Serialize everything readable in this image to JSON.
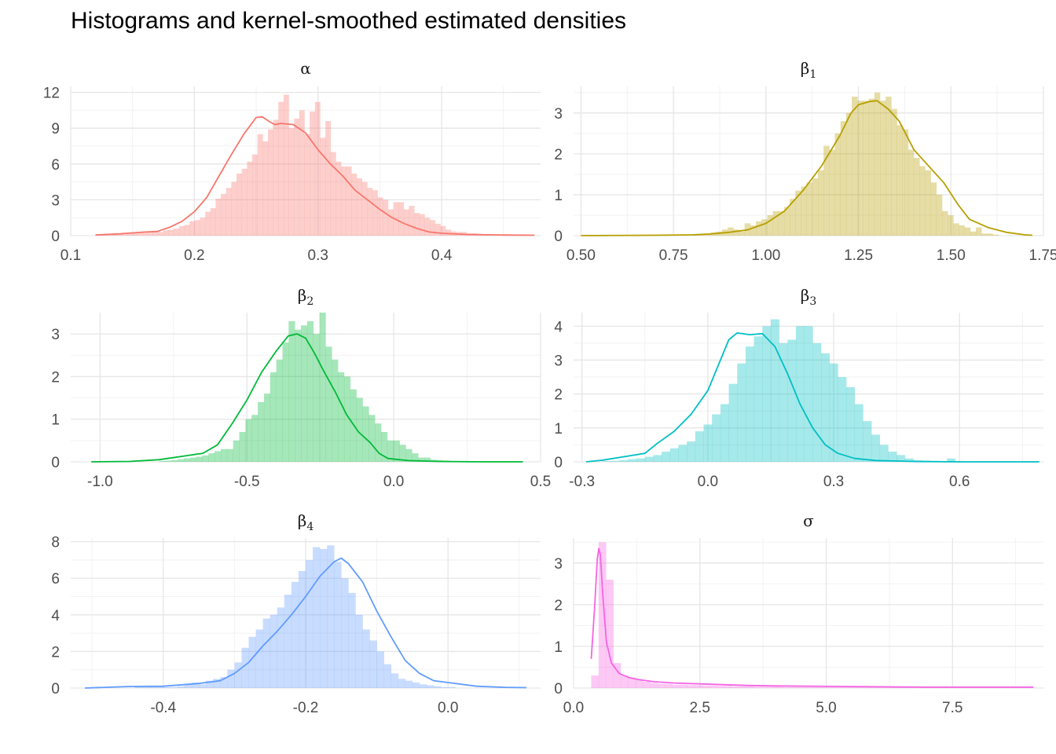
{
  "title": "Histograms and kernel-smoothed estimated densities",
  "chart_data": [
    {
      "type": "histogram+density",
      "strip": "α",
      "strip_sub": "",
      "color": "#F8766D",
      "xlim": [
        0.1,
        0.48
      ],
      "ylim": [
        0,
        12.5
      ],
      "xticks": [
        0.1,
        0.2,
        0.3,
        0.4
      ],
      "xtick_labels": [
        "0.1",
        "0.2",
        "0.3",
        "0.4"
      ],
      "yticks": [
        0,
        3,
        6,
        9,
        12
      ],
      "ytick_labels": [
        "0",
        "3",
        "6",
        "9",
        "12"
      ],
      "range": [
        0.12,
        0.475
      ],
      "density": [
        [
          0.12,
          0.05
        ],
        [
          0.14,
          0.15
        ],
        [
          0.16,
          0.3
        ],
        [
          0.17,
          0.35
        ],
        [
          0.18,
          0.7
        ],
        [
          0.19,
          1.2
        ],
        [
          0.2,
          2.0
        ],
        [
          0.21,
          3.2
        ],
        [
          0.22,
          5.0
        ],
        [
          0.23,
          6.8
        ],
        [
          0.24,
          8.5
        ],
        [
          0.25,
          9.9
        ],
        [
          0.255,
          9.95
        ],
        [
          0.26,
          9.6
        ],
        [
          0.265,
          9.3
        ],
        [
          0.27,
          9.4
        ],
        [
          0.28,
          9.3
        ],
        [
          0.29,
          8.6
        ],
        [
          0.3,
          7.2
        ],
        [
          0.31,
          6.0
        ],
        [
          0.32,
          5.0
        ],
        [
          0.33,
          3.8
        ],
        [
          0.34,
          3.0
        ],
        [
          0.35,
          2.2
        ],
        [
          0.36,
          1.5
        ],
        [
          0.37,
          1.0
        ],
        [
          0.38,
          0.6
        ],
        [
          0.39,
          0.3
        ],
        [
          0.4,
          0.2
        ],
        [
          0.42,
          0.1
        ],
        [
          0.45,
          0.05
        ],
        [
          0.475,
          0.03
        ]
      ],
      "hist": [
        0.05,
        0.05,
        0.05,
        0.1,
        0.1,
        0.1,
        0.15,
        0.2,
        0.3,
        0.3,
        0.3,
        0.3,
        0.3,
        0.45,
        0.5,
        0.6,
        0.8,
        0.9,
        1.2,
        1.3,
        1.5,
        2.0,
        2.3,
        3.1,
        3.5,
        4.0,
        4.5,
        5.2,
        5.6,
        6.2,
        6.8,
        8.5,
        7.9,
        8.9,
        9.7,
        11.2,
        11.8,
        9.0,
        9.8,
        10.5,
        8.5,
        10.4,
        11.2,
        8.2,
        9.6,
        7.0,
        6.2,
        5.8,
        5.8,
        5.2,
        4.8,
        4.5,
        4.0,
        3.8,
        3.2,
        3.0,
        2.2,
        2.8,
        2.8,
        2.2,
        2.5,
        1.9,
        1.8,
        1.5,
        1.3,
        1.0,
        0.8,
        0.5,
        0.35,
        0.3,
        0.3,
        0.2,
        0.2,
        0.15,
        0.1,
        0.1,
        0.1,
        0.05,
        0.05,
        0.05,
        0.05,
        0.05,
        0.05,
        0.05
      ]
    },
    {
      "type": "histogram+density",
      "strip": "β",
      "strip_sub": "1",
      "color": "#B79F00",
      "xlim": [
        0.48,
        1.75
      ],
      "ylim": [
        0,
        3.65
      ],
      "xticks": [
        0.5,
        0.75,
        1.0,
        1.25,
        1.5,
        1.75
      ],
      "xtick_labels": [
        "0.50",
        "0.75",
        "1.00",
        "1.25",
        "1.50",
        "1.75"
      ],
      "yticks": [
        0,
        1,
        2,
        3
      ],
      "ytick_labels": [
        "0",
        "1",
        "2",
        "3"
      ],
      "range": [
        0.5,
        1.72
      ],
      "density": [
        [
          0.5,
          0.0
        ],
        [
          0.7,
          0.01
        ],
        [
          0.8,
          0.02
        ],
        [
          0.85,
          0.04
        ],
        [
          0.9,
          0.08
        ],
        [
          0.95,
          0.14
        ],
        [
          1.0,
          0.3
        ],
        [
          1.05,
          0.6
        ],
        [
          1.1,
          1.1
        ],
        [
          1.15,
          1.7
        ],
        [
          1.2,
          2.45
        ],
        [
          1.23,
          3.0
        ],
        [
          1.25,
          3.2
        ],
        [
          1.28,
          3.28
        ],
        [
          1.3,
          3.3
        ],
        [
          1.33,
          3.1
        ],
        [
          1.36,
          2.8
        ],
        [
          1.4,
          2.1
        ],
        [
          1.45,
          1.6
        ],
        [
          1.48,
          1.3
        ],
        [
          1.52,
          0.75
        ],
        [
          1.55,
          0.4
        ],
        [
          1.6,
          0.2
        ],
        [
          1.65,
          0.08
        ],
        [
          1.7,
          0.02
        ],
        [
          1.72,
          0.01
        ]
      ],
      "hist": [
        0,
        0,
        0,
        0,
        0,
        0,
        0,
        0,
        0,
        0,
        0,
        0,
        0,
        0,
        0,
        0,
        0,
        0,
        0,
        0,
        0.03,
        0.05,
        0.05,
        0.08,
        0.1,
        0.15,
        0.2,
        0.15,
        0.1,
        0.3,
        0.25,
        0.35,
        0.4,
        0.5,
        0.6,
        0.6,
        0.7,
        0.9,
        1.1,
        1.2,
        1.3,
        1.4,
        1.6,
        2.2,
        2.1,
        2.5,
        2.8,
        3.0,
        3.4,
        3.3,
        3.3,
        3.35,
        3.5,
        3.3,
        3.4,
        3.1,
        2.7,
        2.6,
        2.1,
        1.9,
        1.7,
        1.6,
        1.3,
        1.0,
        0.6,
        0.5,
        0.3,
        0.25,
        0.2,
        0.1,
        0.2,
        0.05,
        0.05,
        0.02,
        0,
        0,
        0,
        0,
        0,
        0
      ]
    },
    {
      "type": "histogram+density",
      "strip": "β",
      "strip_sub": "2",
      "color": "#00BA38",
      "xlim": [
        -1.1,
        0.5
      ],
      "ylim": [
        0,
        3.5
      ],
      "xticks": [
        -1.0,
        -0.5,
        0.0,
        0.5
      ],
      "xtick_labels": [
        "-1.0",
        "-0.5",
        "0.0",
        "0.5"
      ],
      "yticks": [
        0,
        1,
        2,
        3
      ],
      "ytick_labels": [
        "0",
        "1",
        "2",
        "3"
      ],
      "range": [
        -1.03,
        0.44
      ],
      "density": [
        [
          -1.03,
          0.0
        ],
        [
          -0.9,
          0.01
        ],
        [
          -0.8,
          0.05
        ],
        [
          -0.7,
          0.15
        ],
        [
          -0.65,
          0.2
        ],
        [
          -0.6,
          0.4
        ],
        [
          -0.55,
          0.9
        ],
        [
          -0.5,
          1.45
        ],
        [
          -0.45,
          2.1
        ],
        [
          -0.4,
          2.6
        ],
        [
          -0.36,
          2.95
        ],
        [
          -0.33,
          3.0
        ],
        [
          -0.3,
          2.9
        ],
        [
          -0.27,
          2.55
        ],
        [
          -0.24,
          2.15
        ],
        [
          -0.2,
          1.65
        ],
        [
          -0.16,
          1.1
        ],
        [
          -0.12,
          0.7
        ],
        [
          -0.08,
          0.45
        ],
        [
          -0.05,
          0.2
        ],
        [
          -0.02,
          0.08
        ],
        [
          0.05,
          0.03
        ],
        [
          0.15,
          0.01
        ],
        [
          0.3,
          0.0
        ],
        [
          0.44,
          0.0
        ]
      ],
      "hist": [
        0,
        0,
        0,
        0,
        0,
        0,
        0,
        0,
        0,
        0,
        0,
        0.02,
        0.03,
        0.04,
        0.06,
        0.08,
        0.1,
        0.12,
        0.15,
        0.2,
        0.25,
        0.3,
        0.3,
        0.5,
        0.7,
        1.0,
        1.1,
        1.4,
        1.6,
        2.1,
        2.4,
        2.8,
        3.3,
        3.1,
        3.2,
        3.3,
        3.0,
        3.5,
        2.7,
        2.4,
        2.1,
        2.0,
        1.7,
        1.5,
        1.3,
        1.1,
        0.9,
        0.7,
        0.5,
        0.5,
        0.4,
        0.3,
        0.2,
        0.1,
        0.1,
        0.05,
        0.04,
        0.03,
        0.02,
        0.01,
        0,
        0,
        0,
        0,
        0,
        0,
        0,
        0,
        0,
        0
      ]
    },
    {
      "type": "histogram+density",
      "strip": "β",
      "strip_sub": "3",
      "color": "#00BFC4",
      "xlim": [
        -0.32,
        0.8
      ],
      "ylim": [
        0,
        4.4
      ],
      "xticks": [
        -0.3,
        0.0,
        0.3,
        0.6
      ],
      "xtick_labels": [
        "-0.3",
        "0.0",
        "0.3",
        "0.6"
      ],
      "yticks": [
        0,
        1,
        2,
        3,
        4
      ],
      "ytick_labels": [
        "0",
        "1",
        "2",
        "3",
        "4"
      ],
      "range": [
        -0.29,
        0.79
      ],
      "density": [
        [
          -0.29,
          0.0
        ],
        [
          -0.25,
          0.05
        ],
        [
          -0.2,
          0.15
        ],
        [
          -0.15,
          0.25
        ],
        [
          -0.12,
          0.55
        ],
        [
          -0.08,
          0.9
        ],
        [
          -0.04,
          1.4
        ],
        [
          0.0,
          2.1
        ],
        [
          0.03,
          3.0
        ],
        [
          0.05,
          3.6
        ],
        [
          0.07,
          3.8
        ],
        [
          0.1,
          3.75
        ],
        [
          0.13,
          3.78
        ],
        [
          0.16,
          3.4
        ],
        [
          0.19,
          2.6
        ],
        [
          0.22,
          1.7
        ],
        [
          0.25,
          1.0
        ],
        [
          0.28,
          0.5
        ],
        [
          0.31,
          0.25
        ],
        [
          0.35,
          0.1
        ],
        [
          0.4,
          0.04
        ],
        [
          0.5,
          0.01
        ],
        [
          0.6,
          0.0
        ],
        [
          0.79,
          0.0
        ]
      ],
      "hist": [
        0,
        0,
        0.02,
        0.03,
        0.05,
        0.08,
        0.1,
        0.15,
        0.2,
        0.3,
        0.4,
        0.5,
        0.6,
        0.9,
        1.1,
        1.4,
        1.7,
        2.3,
        2.9,
        3.4,
        3.7,
        4.0,
        4.2,
        3.5,
        3.6,
        4.0,
        4.0,
        3.5,
        3.2,
        2.9,
        2.5,
        2.2,
        1.7,
        1.2,
        0.8,
        0.5,
        0.3,
        0.2,
        0.1,
        0.05,
        0.04,
        0.03,
        0.02,
        0.1,
        0.02,
        0.01,
        0,
        0,
        0,
        0,
        0,
        0,
        0,
        0
      ]
    },
    {
      "type": "histogram+density",
      "strip": "β",
      "strip_sub": "4",
      "color": "#619CFF",
      "xlim": [
        -0.53,
        0.13
      ],
      "ylim": [
        0,
        8.2
      ],
      "xticks": [
        -0.4,
        -0.2,
        0.0
      ],
      "xtick_labels": [
        "-0.4",
        "-0.2",
        "0.0"
      ],
      "yticks": [
        0,
        2,
        4,
        6,
        8
      ],
      "ytick_labels": [
        "0",
        "2",
        "4",
        "6",
        "8"
      ],
      "range": [
        -0.51,
        0.11
      ],
      "density": [
        [
          -0.51,
          0.0
        ],
        [
          -0.45,
          0.08
        ],
        [
          -0.4,
          0.1
        ],
        [
          -0.35,
          0.25
        ],
        [
          -0.32,
          0.4
        ],
        [
          -0.3,
          0.8
        ],
        [
          -0.28,
          1.4
        ],
        [
          -0.26,
          2.3
        ],
        [
          -0.24,
          3.1
        ],
        [
          -0.22,
          4.0
        ],
        [
          -0.2,
          5.0
        ],
        [
          -0.18,
          6.1
        ],
        [
          -0.16,
          6.9
        ],
        [
          -0.15,
          7.1
        ],
        [
          -0.14,
          6.8
        ],
        [
          -0.12,
          5.8
        ],
        [
          -0.1,
          4.2
        ],
        [
          -0.08,
          2.8
        ],
        [
          -0.06,
          1.5
        ],
        [
          -0.04,
          0.8
        ],
        [
          -0.02,
          0.4
        ],
        [
          0.0,
          0.3
        ],
        [
          0.04,
          0.1
        ],
        [
          0.08,
          0.04
        ],
        [
          0.11,
          0.02
        ]
      ],
      "hist": [
        0,
        0,
        0,
        0,
        0,
        0,
        0,
        0.05,
        0.05,
        0.1,
        0.1,
        0.05,
        0.05,
        0.1,
        0.2,
        0.3,
        0.2,
        0.4,
        0.5,
        0.6,
        1.0,
        1.4,
        2.2,
        2.8,
        3.2,
        3.8,
        4.0,
        4.4,
        5.1,
        5.8,
        6.4,
        7.0,
        7.7,
        7.6,
        7.8,
        6.9,
        6.0,
        5.2,
        4.0,
        3.2,
        2.6,
        2.0,
        1.3,
        0.8,
        0.5,
        0.4,
        0.3,
        0.2,
        0.15,
        0.1,
        0.05,
        0.05,
        0,
        0,
        0,
        0,
        0,
        0,
        0,
        0,
        0,
        0
      ]
    },
    {
      "type": "histogram+density",
      "strip": "σ",
      "strip_sub": "",
      "color": "#F564E3",
      "xlim": [
        0.0,
        9.3
      ],
      "ylim": [
        0,
        3.6
      ],
      "xticks": [
        0.0,
        2.5,
        5.0,
        7.5
      ],
      "xtick_labels": [
        "0.0",
        "2.5",
        "5.0",
        "7.5"
      ],
      "yticks": [
        0,
        1,
        2,
        3
      ],
      "ytick_labels": [
        "0",
        "1",
        "2",
        "3"
      ],
      "range": [
        0.35,
        9.1
      ],
      "density": [
        [
          0.35,
          0.7
        ],
        [
          0.42,
          2.0
        ],
        [
          0.47,
          3.1
        ],
        [
          0.5,
          3.35
        ],
        [
          0.53,
          3.2
        ],
        [
          0.58,
          2.2
        ],
        [
          0.65,
          1.1
        ],
        [
          0.75,
          0.6
        ],
        [
          0.9,
          0.35
        ],
        [
          1.1,
          0.25
        ],
        [
          1.3,
          0.2
        ],
        [
          1.6,
          0.15
        ],
        [
          2.0,
          0.12
        ],
        [
          2.5,
          0.1
        ],
        [
          3.0,
          0.08
        ],
        [
          3.5,
          0.06
        ],
        [
          4.0,
          0.05
        ],
        [
          5.0,
          0.04
        ],
        [
          6.0,
          0.03
        ],
        [
          7.0,
          0.02
        ],
        [
          8.0,
          0.02
        ],
        [
          9.1,
          0.02
        ]
      ],
      "hist": [
        0.3,
        3.5,
        2.6,
        0.6,
        0.3,
        0.25,
        0.2,
        0.15,
        0.12,
        0.1,
        0.1,
        0.08,
        0.08,
        0.07,
        0.07,
        0.06,
        0.06,
        0.05,
        0.05,
        0.04,
        0.04,
        0.04,
        0.03,
        0.03,
        0.03,
        0.03,
        0.02,
        0.02,
        0.02,
        0.02,
        0.02,
        0.02,
        0.02,
        0.02,
        0.02,
        0.02,
        0.02,
        0.02,
        0.02,
        0.02,
        0.02,
        0.02,
        0.02,
        0.02,
        0.02,
        0.02,
        0.02,
        0.02,
        0.02,
        0.02,
        0.02,
        0.02,
        0.02,
        0.02,
        0.02,
        0.02,
        0.02,
        0.02,
        0.02,
        0.02
      ]
    }
  ]
}
